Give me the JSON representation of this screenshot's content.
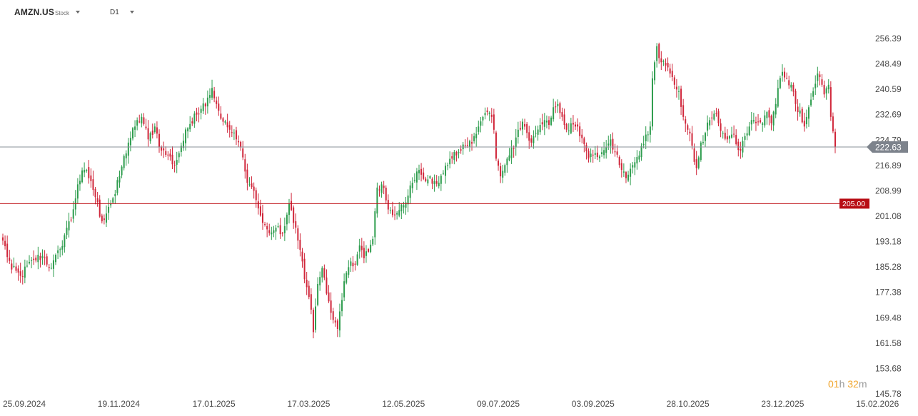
{
  "toolbar": {
    "symbol": "AMZN.US",
    "asset_type": "Stock",
    "timeframe": "D1"
  },
  "countdown": {
    "hours": "01",
    "hours_unit": "h",
    "minutes": "32",
    "minutes_unit": "m"
  },
  "colors": {
    "bull": "#2e9d4e",
    "bear": "#d0263a",
    "current_line": "#8a9099",
    "current_tag": "#7d838c",
    "level_line": "#c0141c",
    "level_tag": "#b80d14",
    "axis_text": "#4a4a4a"
  },
  "chart_data": {
    "type": "candlestick",
    "ylim": [
      145.78,
      260.0
    ],
    "y_ticks": [
      "256.39",
      "248.49",
      "240.59",
      "232.69",
      "224.79",
      "216.89",
      "208.99",
      "201.08",
      "193.18",
      "185.28",
      "177.38",
      "169.48",
      "161.58",
      "153.68",
      "145.78"
    ],
    "x_ticks": [
      "25.09.2024",
      "19.11.2024",
      "17.01.2025",
      "17.03.2025",
      "12.05.2025",
      "09.07.2025",
      "03.09.2025",
      "28.10.2025",
      "23.12.2025",
      "15.02.2026"
    ],
    "current_price": {
      "value": 222.63,
      "label": "222.63"
    },
    "price_level": {
      "value": 205.0,
      "label": "205.00"
    },
    "close_anchors": [
      [
        0,
        193.5
      ],
      [
        4,
        184.5
      ],
      [
        8,
        182.5
      ],
      [
        14,
        187.5
      ],
      [
        18,
        188.8
      ],
      [
        22,
        185.0
      ],
      [
        26,
        190.8
      ],
      [
        29,
        197.5
      ],
      [
        31,
        200.0
      ],
      [
        34,
        211.0
      ],
      [
        37,
        215.5
      ],
      [
        40,
        212.0
      ],
      [
        42,
        207.0
      ],
      [
        45,
        199.5
      ],
      [
        48,
        204.0
      ],
      [
        51,
        208.0
      ],
      [
        54,
        216.5
      ],
      [
        57,
        224.0
      ],
      [
        60,
        229.0
      ],
      [
        63,
        232.0
      ],
      [
        66,
        225.0
      ],
      [
        69,
        229.0
      ],
      [
        72,
        221.5
      ],
      [
        75,
        220.0
      ],
      [
        78,
        217.0
      ],
      [
        81,
        223.0
      ],
      [
        84,
        228.5
      ],
      [
        87,
        233.0
      ],
      [
        90,
        234.5
      ],
      [
        93,
        238.0
      ],
      [
        95,
        241.0
      ],
      [
        97,
        236.0
      ],
      [
        100,
        230.5
      ],
      [
        103,
        228.0
      ],
      [
        106,
        225.0
      ],
      [
        108,
        222.5
      ],
      [
        110,
        215.0
      ],
      [
        112,
        211.0
      ],
      [
        114,
        209.0
      ],
      [
        116,
        203.5
      ],
      [
        118,
        199.0
      ],
      [
        120,
        197.0
      ],
      [
        122,
        196.0
      ],
      [
        124,
        197.5
      ],
      [
        126,
        195.5
      ],
      [
        128,
        198.0
      ],
      [
        130,
        205.0
      ],
      [
        131,
        203.0
      ],
      [
        132,
        199.0
      ],
      [
        134,
        193.5
      ],
      [
        136,
        187.0
      ],
      [
        138,
        179.0
      ],
      [
        140,
        172.0
      ],
      [
        141,
        165.0
      ],
      [
        143,
        180.0
      ],
      [
        145,
        185.0
      ],
      [
        147,
        177.0
      ],
      [
        149,
        171.0
      ],
      [
        151,
        168.0
      ],
      [
        152,
        166.0
      ],
      [
        154,
        175.0
      ],
      [
        156,
        183.5
      ],
      [
        158,
        187.0
      ],
      [
        160,
        186.0
      ],
      [
        162,
        192.0
      ],
      [
        164,
        188.0
      ],
      [
        166,
        190.0
      ],
      [
        168,
        194.0
      ],
      [
        170,
        210.0
      ],
      [
        172,
        211.0
      ],
      [
        174,
        206.0
      ],
      [
        176,
        203.0
      ],
      [
        178,
        201.5
      ],
      [
        180,
        203.0
      ],
      [
        182,
        204.5
      ],
      [
        184,
        207.5
      ],
      [
        186,
        211.5
      ],
      [
        188,
        215.0
      ],
      [
        190,
        214.0
      ],
      [
        192,
        212.0
      ],
      [
        194,
        213.5
      ],
      [
        196,
        212.0
      ],
      [
        198,
        211.5
      ],
      [
        200,
        214.5
      ],
      [
        202,
        217.0
      ],
      [
        204,
        219.0
      ],
      [
        206,
        220.0
      ],
      [
        208,
        221.5
      ],
      [
        210,
        223.0
      ],
      [
        212,
        224.5
      ],
      [
        214,
        226.0
      ],
      [
        216,
        229.0
      ],
      [
        218,
        232.0
      ],
      [
        220,
        233.5
      ],
      [
        222,
        232.0
      ],
      [
        223,
        228.0
      ],
      [
        224,
        219.0
      ],
      [
        226,
        213.5
      ],
      [
        228,
        217.0
      ],
      [
        230,
        220.0
      ],
      [
        232,
        222.0
      ],
      [
        234,
        228.0
      ],
      [
        236,
        230.5
      ],
      [
        238,
        227.0
      ],
      [
        240,
        224.0
      ],
      [
        242,
        227.0
      ],
      [
        244,
        229.5
      ],
      [
        246,
        231.0
      ],
      [
        248,
        229.5
      ],
      [
        250,
        235.0
      ],
      [
        252,
        236.0
      ],
      [
        254,
        232.0
      ],
      [
        256,
        228.0
      ],
      [
        258,
        230.0
      ],
      [
        260,
        229.0
      ],
      [
        262,
        226.0
      ],
      [
        264,
        223.5
      ],
      [
        266,
        219.0
      ],
      [
        268,
        220.0
      ],
      [
        270,
        219.5
      ],
      [
        272,
        221.0
      ],
      [
        274,
        222.5
      ],
      [
        276,
        225.0
      ],
      [
        278,
        221.0
      ],
      [
        280,
        217.0
      ],
      [
        282,
        215.0
      ],
      [
        284,
        214.0
      ],
      [
        286,
        217.0
      ],
      [
        288,
        219.5
      ],
      [
        290,
        223.0
      ],
      [
        292,
        226.5
      ],
      [
        294,
        229.0
      ],
      [
        295,
        244.0
      ],
      [
        296,
        249.0
      ],
      [
        297,
        254.0
      ],
      [
        299,
        249.0
      ],
      [
        301,
        248.0
      ],
      [
        303,
        245.5
      ],
      [
        305,
        242.0
      ],
      [
        307,
        240.0
      ],
      [
        309,
        232.0
      ],
      [
        311,
        228.0
      ],
      [
        313,
        223.0
      ],
      [
        314,
        218.0
      ],
      [
        315,
        216.0
      ],
      [
        317,
        224.0
      ],
      [
        319,
        227.0
      ],
      [
        321,
        231.0
      ],
      [
        323,
        233.0
      ],
      [
        325,
        230.0
      ],
      [
        327,
        227.0
      ],
      [
        329,
        225.0
      ],
      [
        331,
        226.5
      ],
      [
        333,
        223.5
      ],
      [
        335,
        221.5
      ],
      [
        337,
        226.0
      ],
      [
        339,
        229.0
      ],
      [
        341,
        231.0
      ],
      [
        343,
        230.5
      ],
      [
        345,
        230.0
      ],
      [
        347,
        233.5
      ],
      [
        349,
        230.0
      ],
      [
        351,
        236.0
      ],
      [
        352,
        241.0
      ],
      [
        354,
        246.0
      ],
      [
        356,
        244.0
      ],
      [
        358,
        242.0
      ],
      [
        360,
        236.0
      ],
      [
        362,
        234.0
      ],
      [
        364,
        229.0
      ],
      [
        366,
        235.0
      ],
      [
        368,
        240.0
      ],
      [
        370,
        245.5
      ],
      [
        372,
        242.0
      ],
      [
        373,
        239.0
      ],
      [
        375,
        242.0
      ],
      [
        376,
        232.0
      ],
      [
        378,
        222.5
      ]
    ]
  }
}
